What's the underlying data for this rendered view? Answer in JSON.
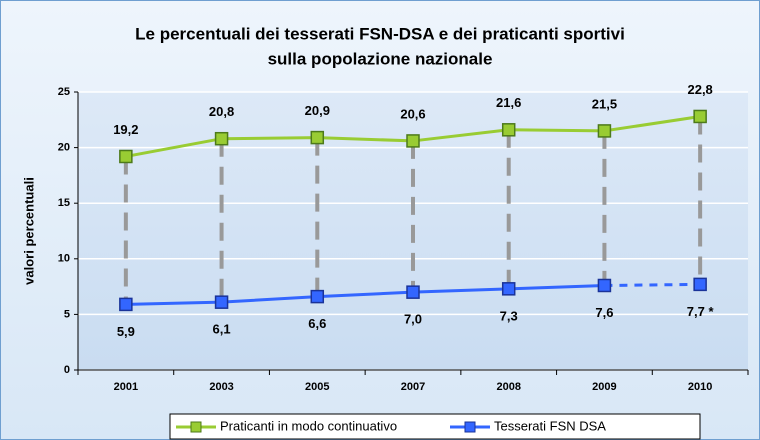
{
  "chart_data": {
    "type": "line",
    "title": "Le percentuali dei tesserati FSN-DSA e dei praticanti sportivi",
    "subtitle": "sulla popolazione nazionale",
    "y_label": "valori percentuali",
    "categories": [
      "2001",
      "2003",
      "2005",
      "2007",
      "2008",
      "2009",
      "2010"
    ],
    "series": [
      {
        "name": "Praticanti in modo continuativo",
        "color": "#99cc33",
        "values": [
          19.2,
          20.8,
          20.9,
          20.6,
          21.6,
          21.5,
          22.8
        ],
        "value_labels": [
          "19,2",
          "20,8",
          "20,9",
          "20,6",
          "21,6",
          "21,5",
          "22,8"
        ],
        "label_position": "above"
      },
      {
        "name": "Tesserati FSN DSA",
        "color": "#3366ff",
        "values": [
          5.9,
          6.1,
          6.6,
          7.0,
          7.3,
          7.6,
          7.7
        ],
        "value_labels": [
          "5,9",
          "6,1",
          "6,6",
          "7,0",
          "7,3",
          "7,6",
          "7,7 *"
        ],
        "label_position": "below",
        "dash_last_segment": true
      }
    ],
    "ylim": [
      0,
      25
    ],
    "yticks": [
      0,
      5,
      10,
      15,
      20,
      25
    ],
    "grid": true,
    "legend": "bottom"
  }
}
